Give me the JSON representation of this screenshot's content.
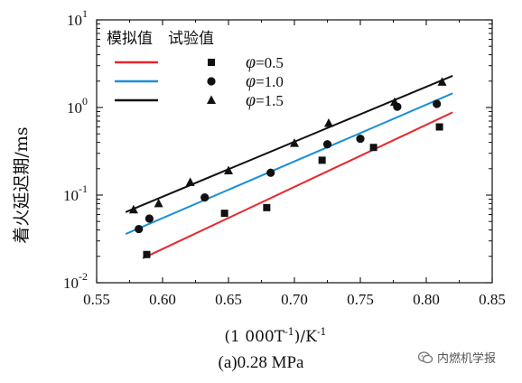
{
  "chart_data": {
    "type": "scatter",
    "ylabel": "着火延迟期/ms",
    "xlabel_main": "(1 000T",
    "xlabel_sup": "-1",
    "xlabel_unit": ")/K",
    "xlabel_unit_sup": "-1",
    "x_ticks": [
      "0.55",
      "0.60",
      "0.65",
      "0.70",
      "0.75",
      "0.80",
      "0.85"
    ],
    "y_ticks": [
      {
        "base": "10",
        "exp": "-2",
        "value": 0.01
      },
      {
        "base": "10",
        "exp": "-1",
        "value": 0.1
      },
      {
        "base": "10",
        "exp": "0",
        "value": 1
      },
      {
        "base": "10",
        "exp": "1",
        "value": 10
      }
    ],
    "xlim": [
      0.55,
      0.85
    ],
    "ylim": [
      0.01,
      10
    ],
    "yscale": "log",
    "legend_header": {
      "sim": "模拟值",
      "exp": "试验值"
    },
    "legend_position": "top-left",
    "series": [
      {
        "label_symbol": "φ",
        "label_value": "=0.5",
        "color": "#e8262c",
        "marker": "square",
        "sim_line": {
          "x": [
            0.585,
            0.82
          ],
          "y": [
            0.019,
            0.88
          ]
        },
        "exp_points": {
          "x": [
            0.588,
            0.647,
            0.679,
            0.721,
            0.76,
            0.81
          ],
          "y": [
            0.021,
            0.062,
            0.072,
            0.25,
            0.35,
            0.6
          ]
        }
      },
      {
        "label_symbol": "φ",
        "label_value": "=1.0",
        "color": "#1a8fd6",
        "marker": "circle",
        "sim_line": {
          "x": [
            0.572,
            0.82
          ],
          "y": [
            0.036,
            1.45
          ]
        },
        "exp_points": {
          "x": [
            0.582,
            0.59,
            0.632,
            0.682,
            0.725,
            0.75,
            0.778,
            0.808
          ],
          "y": [
            0.041,
            0.054,
            0.094,
            0.18,
            0.38,
            0.44,
            1.02,
            1.1
          ]
        }
      },
      {
        "label_symbol": "φ",
        "label_value": "=1.5",
        "color": "#111111",
        "marker": "triangle",
        "sim_line": {
          "x": [
            0.572,
            0.82
          ],
          "y": [
            0.064,
            2.3
          ]
        },
        "exp_points": {
          "x": [
            0.578,
            0.597,
            0.621,
            0.65,
            0.7,
            0.726,
            0.776,
            0.812
          ],
          "y": [
            0.068,
            0.08,
            0.14,
            0.19,
            0.39,
            0.66,
            1.15,
            1.95
          ]
        }
      }
    ]
  },
  "caption": "(a)0.28 MPa",
  "watermark": "内燃机学报"
}
